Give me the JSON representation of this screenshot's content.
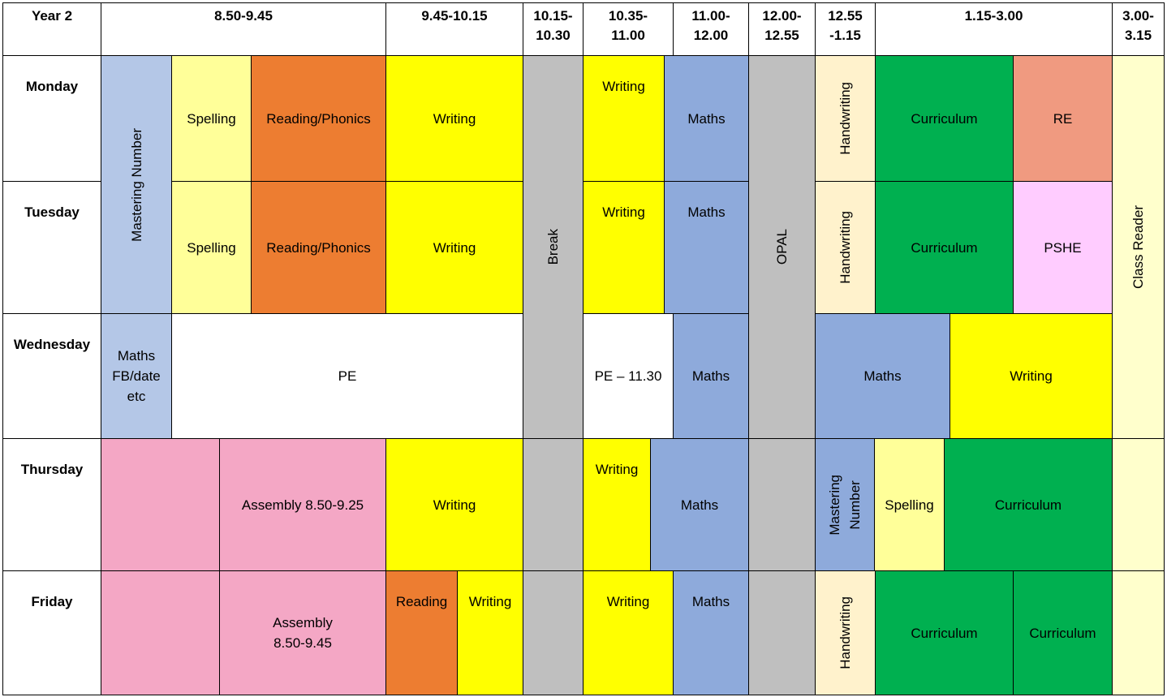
{
  "colors": {
    "yellow": "#ffff00",
    "pale_yellow": "#ffff99",
    "orange": "#ed7d31",
    "light_blue": "#b4c7e7",
    "blue": "#8eaadb",
    "grey": "#bfbfbf",
    "cream": "#fff2cc",
    "green": "#00b050",
    "salmon": "#f09a80",
    "pink_light": "#ffccff",
    "pink": "#f4a7c5",
    "class_reader": "#ffffcc",
    "white": "#ffffff"
  },
  "header": {
    "corner": "Year 2",
    "times": [
      "8.50-9.45",
      "9.45-10.15",
      "10.15-\n10.30",
      "10.35-\n11.00",
      "11.00-\n12.00",
      "12.00-\n12.55",
      "12.55\n-1.15",
      "1.15-3.00",
      "3.00-\n3.15"
    ]
  },
  "days": [
    "Monday",
    "Tuesday",
    "Wednesday",
    "Thursday",
    "Friday"
  ],
  "lessons": {
    "mastering_number": "Mastering Number",
    "break": "Break",
    "opal": "OPAL",
    "class_reader": "Class Reader",
    "monday": [
      "Spelling",
      "Reading/Phonics",
      "Writing",
      "Writing",
      "Maths",
      "Handwriting",
      "Curriculum",
      "RE"
    ],
    "tuesday": [
      "Spelling",
      "Reading/Phonics",
      "Writing",
      "Writing",
      "Maths",
      "Handwriting",
      "Curriculum",
      "PSHE"
    ],
    "wednesday": [
      "Maths\nFB/date\netc",
      "PE",
      "PE – 11.30",
      "Maths",
      "Maths",
      "Writing"
    ],
    "thursday": [
      "",
      "Assembly 8.50-9.25",
      "Writing",
      "",
      "Writing",
      "Maths",
      "",
      "Mastering\nNumber",
      "Spelling",
      "Curriculum",
      ""
    ],
    "friday": [
      "",
      "Assembly\n8.50-9.45",
      "Reading",
      "Writing",
      "",
      "Writing",
      "Maths",
      "",
      "Handwriting",
      "Curriculum",
      "Curriculum",
      ""
    ]
  }
}
